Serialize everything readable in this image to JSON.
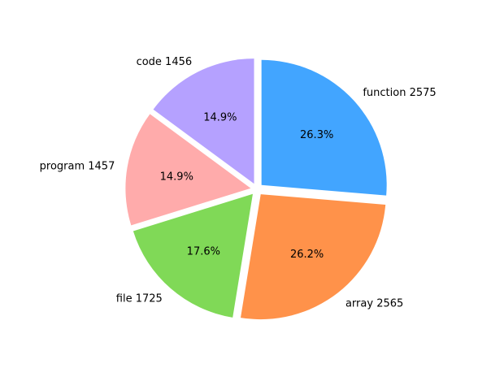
{
  "chart_data": {
    "type": "pie",
    "start_angle_deg": 90,
    "direction": "clockwise",
    "explode": 0.05,
    "slices": [
      {
        "name": "function",
        "value": 2575,
        "label": "function 2575",
        "pct_label": "26.3%",
        "color": "#42a5ff"
      },
      {
        "name": "array",
        "value": 2565,
        "label": "array 2565",
        "pct_label": "26.2%",
        "color": "#ff924a"
      },
      {
        "name": "file",
        "value": 1725,
        "label": "file 1725",
        "pct_label": "17.6%",
        "color": "#80d957"
      },
      {
        "name": "program",
        "value": 1457,
        "label": "program 1457",
        "pct_label": "14.9%",
        "color": "#ffabab"
      },
      {
        "name": "code",
        "value": 1456,
        "label": "code 1456",
        "pct_label": "14.9%",
        "color": "#b5a1ff"
      }
    ]
  }
}
